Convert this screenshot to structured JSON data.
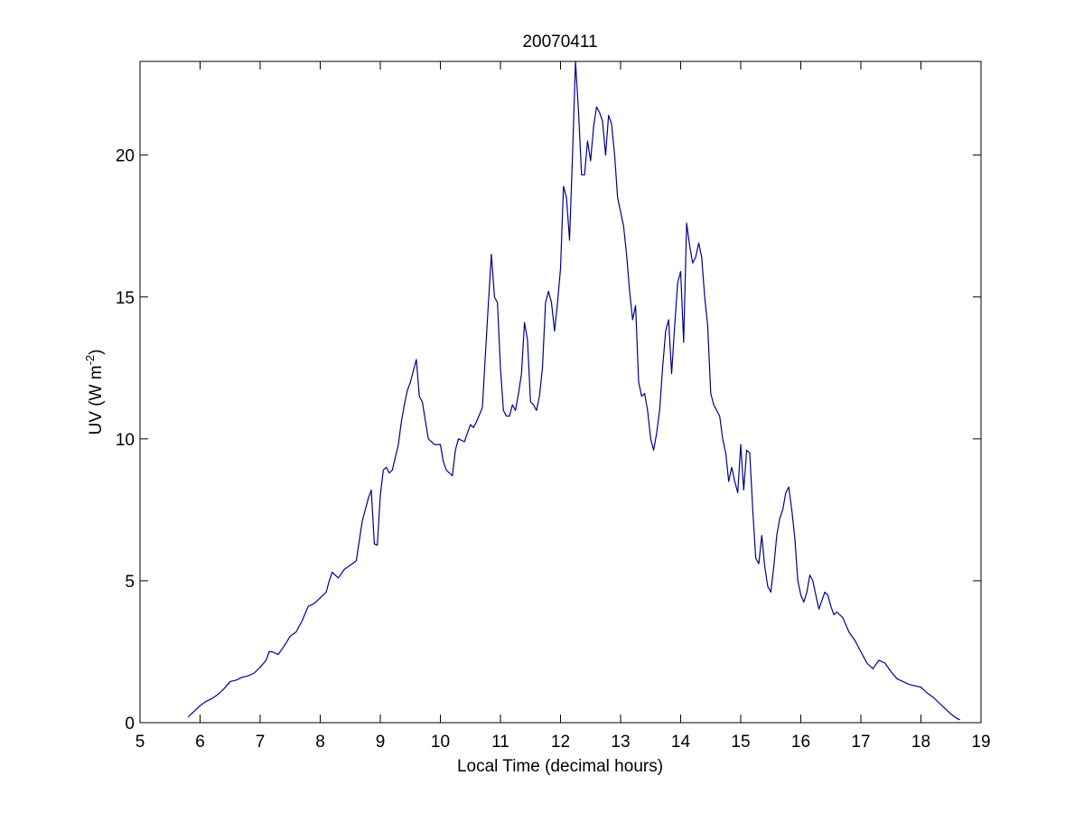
{
  "chart_data": {
    "type": "line",
    "title": "20070411",
    "xlabel": "Local Time (decimal hours)",
    "ylabel": "UV (W m-2)",
    "ylabel_main": "UV (W m",
    "ylabel_sup": "-2",
    "ylabel_end": ")",
    "xlim": [
      5,
      19
    ],
    "ylim": [
      0,
      23.3
    ],
    "xticks": [
      5,
      6,
      7,
      8,
      9,
      10,
      11,
      12,
      13,
      14,
      15,
      16,
      17,
      18,
      19
    ],
    "yticks": [
      0,
      5,
      10,
      15,
      20
    ],
    "grid": false,
    "line_color": "#00008b",
    "series": [
      {
        "x": [
          5.8,
          5.9,
          6.0,
          6.1,
          6.2,
          6.3,
          6.4,
          6.5,
          6.6,
          6.7,
          6.8,
          6.9,
          7.0,
          7.1,
          7.15,
          7.2,
          7.3,
          7.4,
          7.5,
          7.6,
          7.7,
          7.8,
          7.9,
          8.0,
          8.1,
          8.15,
          8.2,
          8.3,
          8.4,
          8.5,
          8.6,
          8.7,
          8.8,
          8.85,
          8.9,
          8.95,
          9.0,
          9.05,
          9.1,
          9.15,
          9.2,
          9.3,
          9.35,
          9.4,
          9.45,
          9.5,
          9.55,
          9.6,
          9.65,
          9.7,
          9.8,
          9.9,
          10.0,
          10.05,
          10.1,
          10.2,
          10.25,
          10.3,
          10.4,
          10.45,
          10.5,
          10.55,
          10.6,
          10.7,
          10.75,
          10.8,
          10.85,
          10.9,
          10.95,
          11.0,
          11.05,
          11.1,
          11.15,
          11.2,
          11.25,
          11.3,
          11.35,
          11.4,
          11.45,
          11.5,
          11.55,
          11.6,
          11.65,
          11.7,
          11.75,
          11.8,
          11.85,
          11.9,
          11.95,
          12.0,
          12.05,
          12.1,
          12.15,
          12.2,
          12.25,
          12.3,
          12.35,
          12.4,
          12.45,
          12.5,
          12.55,
          12.6,
          12.65,
          12.7,
          12.75,
          12.8,
          12.85,
          12.9,
          12.95,
          13.0,
          13.05,
          13.1,
          13.15,
          13.2,
          13.25,
          13.3,
          13.35,
          13.4,
          13.45,
          13.5,
          13.55,
          13.6,
          13.65,
          13.7,
          13.75,
          13.8,
          13.85,
          13.9,
          13.95,
          14.0,
          14.05,
          14.1,
          14.15,
          14.2,
          14.25,
          14.3,
          14.35,
          14.4,
          14.45,
          14.5,
          14.55,
          14.6,
          14.65,
          14.7,
          14.75,
          14.8,
          14.85,
          14.9,
          14.95,
          15.0,
          15.05,
          15.1,
          15.15,
          15.2,
          15.25,
          15.3,
          15.35,
          15.4,
          15.45,
          15.5,
          15.55,
          15.6,
          15.65,
          15.7,
          15.75,
          15.8,
          15.85,
          15.9,
          15.95,
          16.0,
          16.05,
          16.1,
          16.15,
          16.2,
          16.25,
          16.3,
          16.35,
          16.4,
          16.45,
          16.5,
          16.55,
          16.6,
          16.7,
          16.8,
          16.9,
          17.0,
          17.1,
          17.2,
          17.3,
          17.4,
          17.5,
          17.6,
          17.7,
          17.8,
          17.9,
          18.0,
          18.1,
          18.2,
          18.3,
          18.4,
          18.5,
          18.6,
          18.65
        ],
        "values": [
          0.2,
          0.4,
          0.6,
          0.75,
          0.85,
          1.0,
          1.2,
          1.45,
          1.5,
          1.6,
          1.65,
          1.75,
          1.95,
          2.2,
          2.5,
          2.5,
          2.4,
          2.7,
          3.05,
          3.2,
          3.6,
          4.1,
          4.2,
          4.4,
          4.6,
          5.0,
          5.3,
          5.1,
          5.4,
          5.55,
          5.7,
          7.1,
          7.9,
          8.2,
          6.3,
          6.25,
          8.0,
          8.9,
          9.0,
          8.8,
          8.9,
          9.8,
          10.6,
          11.2,
          11.7,
          12.0,
          12.4,
          12.8,
          11.5,
          11.3,
          10.0,
          9.8,
          9.8,
          9.2,
          8.9,
          8.7,
          9.6,
          10.0,
          9.9,
          10.2,
          10.5,
          10.4,
          10.6,
          11.1,
          13.0,
          14.8,
          16.5,
          15.0,
          14.8,
          12.5,
          11.0,
          10.8,
          10.8,
          11.2,
          11.0,
          11.6,
          12.3,
          14.1,
          13.5,
          11.3,
          11.2,
          11.0,
          11.5,
          12.5,
          14.8,
          15.2,
          14.8,
          13.8,
          14.8,
          16.0,
          18.9,
          18.5,
          17.0,
          20.0,
          23.3,
          21.5,
          19.3,
          19.3,
          20.5,
          19.8,
          21.0,
          21.7,
          21.5,
          21.2,
          20.0,
          21.4,
          21.1,
          20.0,
          18.5,
          18.0,
          17.5,
          16.5,
          15.2,
          14.2,
          14.7,
          12.0,
          11.5,
          11.6,
          11.0,
          10.0,
          9.6,
          10.2,
          11.0,
          12.5,
          13.8,
          14.2,
          12.3,
          14.0,
          15.5,
          15.9,
          13.4,
          17.6,
          16.8,
          16.2,
          16.4,
          16.9,
          16.4,
          15.0,
          14.0,
          11.6,
          11.2,
          11.0,
          10.8,
          10.0,
          9.5,
          8.5,
          9.0,
          8.5,
          8.1,
          9.8,
          8.2,
          9.6,
          9.5,
          7.5,
          5.8,
          5.6,
          6.6,
          5.5,
          4.8,
          4.6,
          5.5,
          6.6,
          7.2,
          7.5,
          8.1,
          8.3,
          7.5,
          6.5,
          5.0,
          4.5,
          4.25,
          4.6,
          5.2,
          5.0,
          4.5,
          4.0,
          4.3,
          4.6,
          4.5,
          4.1,
          3.8,
          3.9,
          3.7,
          3.2,
          2.9,
          2.5,
          2.1,
          1.9,
          2.2,
          2.1,
          1.8,
          1.55,
          1.45,
          1.35,
          1.3,
          1.25,
          1.05,
          0.9,
          0.7,
          0.5,
          0.3,
          0.15,
          0.1
        ]
      }
    ]
  }
}
